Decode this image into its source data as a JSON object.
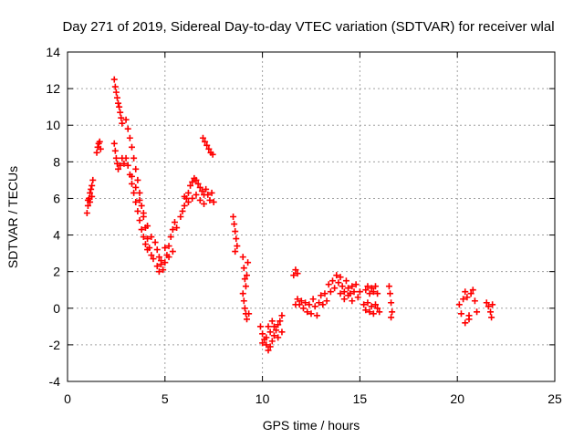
{
  "chart_data": {
    "type": "scatter",
    "title": "Day 271 of 2019, Sidereal Day-to-day VTEC variation (SDTVAR) for receiver wlal",
    "xlabel": "GPS time / hours",
    "ylabel": "SDTVAR / TECUs",
    "xlim": [
      0,
      25
    ],
    "ylim": [
      -4,
      14
    ],
    "xticks": [
      0,
      5,
      10,
      15,
      20,
      25
    ],
    "yticks": [
      -4,
      -2,
      0,
      2,
      4,
      6,
      8,
      10,
      12,
      14
    ],
    "grid": true,
    "marker": "plus",
    "color": "#ff0000",
    "series": [
      {
        "name": "SDTVAR",
        "points": [
          [
            1.0,
            5.2
          ],
          [
            1.05,
            5.6
          ],
          [
            1.1,
            6.0
          ],
          [
            1.15,
            6.3
          ],
          [
            1.2,
            6.5
          ],
          [
            1.25,
            6.7
          ],
          [
            1.3,
            7.0
          ],
          [
            1.05,
            5.9
          ],
          [
            1.15,
            5.8
          ],
          [
            1.25,
            6.1
          ],
          [
            1.5,
            8.5
          ],
          [
            1.55,
            8.8
          ],
          [
            1.6,
            9.0
          ],
          [
            1.65,
            9.1
          ],
          [
            1.7,
            8.7
          ],
          [
            2.4,
            12.5
          ],
          [
            2.45,
            12.1
          ],
          [
            2.5,
            11.8
          ],
          [
            2.55,
            11.5
          ],
          [
            2.6,
            11.2
          ],
          [
            2.65,
            11.0
          ],
          [
            2.7,
            10.7
          ],
          [
            2.75,
            10.4
          ],
          [
            2.8,
            10.1
          ],
          [
            2.4,
            9.0
          ],
          [
            2.45,
            8.6
          ],
          [
            2.5,
            8.2
          ],
          [
            2.55,
            7.9
          ],
          [
            2.6,
            7.6
          ],
          [
            2.7,
            7.8
          ],
          [
            2.8,
            8.2
          ],
          [
            2.9,
            7.9
          ],
          [
            3.0,
            10.3
          ],
          [
            3.1,
            9.8
          ],
          [
            3.2,
            9.3
          ],
          [
            3.3,
            8.8
          ],
          [
            3.4,
            8.2
          ],
          [
            3.5,
            7.6
          ],
          [
            3.6,
            7.0
          ],
          [
            3.7,
            6.3
          ],
          [
            3.8,
            5.6
          ],
          [
            3.9,
            5.0
          ],
          [
            4.0,
            4.4
          ],
          [
            4.1,
            3.8
          ],
          [
            4.2,
            3.3
          ],
          [
            4.3,
            2.9
          ],
          [
            4.4,
            2.7
          ],
          [
            3.0,
            8.2
          ],
          [
            3.1,
            7.8
          ],
          [
            3.2,
            7.3
          ],
          [
            3.3,
            6.8
          ],
          [
            3.4,
            6.3
          ],
          [
            3.5,
            5.8
          ],
          [
            3.6,
            5.3
          ],
          [
            3.7,
            4.8
          ],
          [
            3.8,
            4.3
          ],
          [
            3.9,
            3.9
          ],
          [
            4.0,
            3.5
          ],
          [
            4.1,
            3.2
          ],
          [
            3.3,
            7.2
          ],
          [
            3.5,
            6.6
          ],
          [
            3.7,
            5.9
          ],
          [
            3.9,
            5.2
          ],
          [
            4.1,
            4.5
          ],
          [
            4.3,
            3.9
          ],
          [
            4.5,
            3.6
          ],
          [
            4.6,
            3.2
          ],
          [
            4.7,
            2.8
          ],
          [
            4.8,
            2.4
          ],
          [
            4.9,
            2.1
          ],
          [
            5.0,
            2.5
          ],
          [
            5.1,
            2.9
          ],
          [
            5.2,
            3.4
          ],
          [
            5.3,
            3.9
          ],
          [
            5.4,
            4.3
          ],
          [
            5.5,
            4.7
          ],
          [
            5.6,
            4.4
          ],
          [
            4.6,
            2.3
          ],
          [
            4.7,
            2.0
          ],
          [
            4.8,
            2.6
          ],
          [
            5.0,
            3.3
          ],
          [
            5.2,
            2.8
          ],
          [
            5.4,
            3.1
          ],
          [
            5.8,
            5.0
          ],
          [
            5.9,
            5.3
          ],
          [
            6.0,
            5.6
          ],
          [
            6.1,
            6.0
          ],
          [
            6.2,
            6.3
          ],
          [
            6.3,
            6.7
          ],
          [
            6.4,
            6.9
          ],
          [
            6.5,
            7.1
          ],
          [
            6.6,
            7.0
          ],
          [
            6.7,
            6.8
          ],
          [
            6.8,
            6.6
          ],
          [
            6.9,
            6.4
          ],
          [
            7.0,
            6.2
          ],
          [
            7.1,
            6.5
          ],
          [
            7.2,
            6.2
          ],
          [
            7.3,
            5.9
          ],
          [
            7.4,
            6.3
          ],
          [
            7.5,
            5.8
          ],
          [
            6.0,
            6.1
          ],
          [
            6.2,
            5.8
          ],
          [
            6.4,
            6.0
          ],
          [
            6.6,
            6.2
          ],
          [
            6.8,
            5.9
          ],
          [
            7.0,
            5.7
          ],
          [
            6.95,
            9.3
          ],
          [
            7.05,
            9.1
          ],
          [
            7.15,
            8.9
          ],
          [
            7.25,
            8.7
          ],
          [
            7.35,
            8.5
          ],
          [
            7.45,
            8.4
          ],
          [
            8.5,
            5.0
          ],
          [
            8.55,
            4.6
          ],
          [
            8.6,
            4.2
          ],
          [
            8.65,
            3.8
          ],
          [
            8.7,
            3.4
          ],
          [
            8.6,
            3.1
          ],
          [
            9.0,
            2.8
          ],
          [
            9.05,
            2.2
          ],
          [
            9.1,
            1.6
          ],
          [
            9.15,
            1.2
          ],
          [
            9.2,
            1.8
          ],
          [
            9.25,
            2.5
          ],
          [
            9.0,
            0.8
          ],
          [
            9.05,
            0.4
          ],
          [
            9.1,
            0.0
          ],
          [
            9.15,
            -0.3
          ],
          [
            9.2,
            -0.6
          ],
          [
            9.3,
            -0.3
          ],
          [
            9.9,
            -1.0
          ],
          [
            10.0,
            -1.4
          ],
          [
            10.1,
            -1.7
          ],
          [
            10.2,
            -2.0
          ],
          [
            10.3,
            -2.3
          ],
          [
            10.4,
            -2.1
          ],
          [
            10.5,
            -1.8
          ],
          [
            10.6,
            -1.5
          ],
          [
            10.7,
            -1.2
          ],
          [
            10.8,
            -0.9
          ],
          [
            10.9,
            -0.7
          ],
          [
            11.0,
            -0.4
          ],
          [
            10.0,
            -1.9
          ],
          [
            10.2,
            -1.6
          ],
          [
            10.4,
            -1.3
          ],
          [
            10.6,
            -1.0
          ],
          [
            10.8,
            -1.6
          ],
          [
            11.0,
            -1.3
          ],
          [
            10.5,
            -0.7
          ],
          [
            10.3,
            -1.0
          ],
          [
            11.6,
            1.8
          ],
          [
            11.7,
            2.1
          ],
          [
            11.8,
            1.9
          ],
          [
            11.7,
            0.2
          ],
          [
            11.8,
            0.5
          ],
          [
            11.9,
            0.2
          ],
          [
            12.0,
            0.4
          ],
          [
            12.1,
            0.0
          ],
          [
            12.2,
            0.3
          ],
          [
            12.3,
            -0.2
          ],
          [
            12.4,
            0.2
          ],
          [
            12.5,
            -0.3
          ],
          [
            12.6,
            0.5
          ],
          [
            12.7,
            0.1
          ],
          [
            12.8,
            -0.4
          ],
          [
            12.9,
            0.3
          ],
          [
            13.0,
            0.7
          ],
          [
            13.1,
            0.2
          ],
          [
            13.2,
            0.8
          ],
          [
            13.3,
            0.4
          ],
          [
            13.4,
            1.3
          ],
          [
            13.5,
            0.9
          ],
          [
            13.6,
            1.5
          ],
          [
            13.7,
            1.1
          ],
          [
            13.8,
            1.8
          ],
          [
            13.9,
            1.4
          ],
          [
            14.0,
            1.7
          ],
          [
            14.1,
            1.2
          ],
          [
            14.2,
            0.9
          ],
          [
            14.3,
            1.5
          ],
          [
            14.4,
            1.1
          ],
          [
            14.5,
            0.8
          ],
          [
            14.6,
            1.2
          ],
          [
            14.7,
            0.9
          ],
          [
            14.8,
            1.3
          ],
          [
            14.9,
            0.6
          ],
          [
            15.0,
            0.9
          ],
          [
            14.0,
            0.8
          ],
          [
            14.2,
            0.5
          ],
          [
            14.4,
            0.7
          ],
          [
            14.6,
            0.4
          ],
          [
            15.2,
            0.2
          ],
          [
            15.3,
            -0.1
          ],
          [
            15.4,
            0.3
          ],
          [
            15.5,
            -0.2
          ],
          [
            15.6,
            0.1
          ],
          [
            15.7,
            -0.3
          ],
          [
            15.8,
            0.2
          ],
          [
            15.9,
            0.0
          ],
          [
            16.0,
            -0.2
          ],
          [
            15.3,
            1.0
          ],
          [
            15.4,
            1.2
          ],
          [
            15.5,
            0.8
          ],
          [
            15.6,
            1.1
          ],
          [
            15.7,
            0.9
          ],
          [
            15.8,
            1.2
          ],
          [
            15.9,
            0.8
          ],
          [
            16.5,
            1.2
          ],
          [
            16.55,
            0.8
          ],
          [
            16.6,
            0.3
          ],
          [
            16.65,
            -0.2
          ],
          [
            16.6,
            -0.5
          ],
          [
            20.1,
            0.2
          ],
          [
            20.2,
            -0.3
          ],
          [
            20.3,
            0.5
          ],
          [
            20.4,
            0.9
          ],
          [
            20.5,
            0.6
          ],
          [
            20.6,
            -0.4
          ],
          [
            20.7,
            0.8
          ],
          [
            20.8,
            1.0
          ],
          [
            20.9,
            0.4
          ],
          [
            21.0,
            -0.2
          ],
          [
            20.4,
            -0.8
          ],
          [
            20.6,
            -0.6
          ],
          [
            21.5,
            0.3
          ],
          [
            21.6,
            0.1
          ],
          [
            21.7,
            -0.2
          ],
          [
            21.75,
            -0.5
          ],
          [
            21.8,
            0.2
          ]
        ]
      }
    ]
  }
}
